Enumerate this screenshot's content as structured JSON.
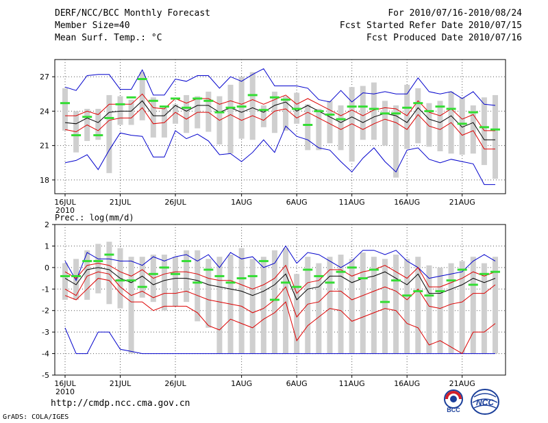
{
  "header": {
    "left": [
      "DERF/NCC/BCC Monthly Forecast",
      "Member Size=40",
      "Mean Surf. Temp.: °C"
    ],
    "right": [
      "For 2010/07/16-2010/08/24",
      "Fcst Started Refer Date 2010/07/15",
      "Fcst Produced Date 2010/07/16"
    ]
  },
  "footer": {
    "url": "http://cmdp.ncc.cma.gov.cn",
    "grads": "GrADS: COLA/IGES",
    "logo1": "BCC",
    "logo2": "NCC"
  },
  "colors": {
    "box": "#cfcfcf",
    "median": "#33dd33",
    "mean": "#000000",
    "pm_sd": "#dd0000",
    "extreme": "#0000cc"
  },
  "chart_data": [
    {
      "type": "box-ensemble",
      "title": "Mean Surf. Temp.: °C",
      "xlabel": "",
      "ylabel": "",
      "ylim": [
        16.8,
        28.5
      ],
      "yticks": [
        18,
        21,
        24,
        27
      ],
      "grid": true,
      "xtick_labels": [
        "16JUL",
        "21JUL",
        "26JUL",
        "1AUG",
        "6AUG",
        "11AUG",
        "16AUG",
        "21AUG"
      ],
      "xtick_days": [
        1,
        6,
        11,
        17,
        22,
        27,
        32,
        37
      ],
      "year_label": "2010",
      "days": 40,
      "mean": [
        23.0,
        22.9,
        23.4,
        23.0,
        23.9,
        24.0,
        24.0,
        24.9,
        23.6,
        23.6,
        24.5,
        24.0,
        24.5,
        24.5,
        23.9,
        24.3,
        23.9,
        24.3,
        23.9,
        24.5,
        24.8,
        24.0,
        24.5,
        24.0,
        23.5,
        23.0,
        23.5,
        23.0,
        23.5,
        23.8,
        23.6,
        23.0,
        24.3,
        23.3,
        23.0,
        23.6,
        22.6,
        23.0,
        21.5,
        21.5
      ],
      "upper_sd": [
        23.6,
        23.6,
        24.0,
        23.7,
        24.6,
        24.6,
        24.6,
        25.5,
        24.3,
        24.2,
        25.1,
        24.7,
        25.1,
        25.1,
        24.6,
        24.9,
        24.6,
        25.0,
        24.6,
        25.0,
        25.4,
        24.6,
        25.1,
        24.6,
        24.1,
        23.6,
        24.1,
        23.6,
        24.1,
        24.3,
        24.2,
        23.6,
        24.9,
        23.9,
        23.6,
        24.2,
        23.3,
        23.7,
        22.3,
        22.3
      ],
      "lower_sd": [
        22.4,
        22.2,
        22.8,
        22.3,
        23.2,
        23.4,
        23.4,
        24.3,
        22.9,
        23.0,
        23.9,
        23.3,
        23.9,
        23.9,
        23.2,
        23.7,
        23.2,
        23.6,
        23.2,
        24.0,
        24.2,
        23.4,
        23.9,
        23.4,
        22.9,
        22.4,
        22.9,
        22.4,
        22.9,
        23.3,
        23.0,
        22.4,
        23.7,
        22.7,
        22.4,
        23.0,
        21.9,
        22.3,
        20.7,
        20.7
      ],
      "max": [
        26.1,
        25.8,
        27.1,
        27.2,
        27.2,
        25.9,
        25.9,
        27.6,
        25.4,
        25.4,
        26.8,
        26.6,
        27.1,
        27.1,
        26.0,
        27.0,
        26.6,
        27.2,
        27.7,
        26.2,
        26.2,
        26.2,
        26.0,
        25.0,
        24.8,
        25.8,
        24.8,
        25.6,
        25.5,
        25.7,
        25.5,
        25.5,
        26.9,
        25.7,
        25.5,
        25.7,
        25.1,
        25.7,
        24.6,
        24.5
      ],
      "min": [
        19.5,
        19.7,
        20.2,
        18.9,
        20.6,
        22.1,
        21.9,
        21.8,
        20.0,
        20.0,
        22.3,
        21.6,
        22.0,
        21.4,
        20.2,
        20.3,
        19.6,
        20.4,
        21.5,
        20.4,
        22.7,
        21.8,
        21.5,
        20.8,
        20.6,
        19.6,
        18.7,
        19.9,
        20.8,
        19.6,
        18.7,
        20.6,
        20.8,
        19.8,
        19.5,
        19.8,
        19.6,
        19.4,
        17.6,
        17.6
      ],
      "box_top": [
        26.0,
        24.0,
        24.2,
        24.2,
        25.4,
        25.3,
        25.0,
        27.4,
        25.2,
        24.3,
        24.6,
        25.4,
        25.3,
        25.7,
        25.3,
        26.3,
        27.0,
        27.4,
        24.5,
        25.7,
        25.3,
        25.6,
        24.6,
        24.2,
        24.9,
        24.5,
        26.1,
        26.2,
        26.5,
        24.9,
        24.5,
        26.3,
        26.0,
        24.7,
        24.9,
        25.7,
        25.2,
        24.5,
        25.2,
        25.4
      ],
      "box_bottom": [
        22.3,
        20.4,
        21.4,
        21.5,
        18.6,
        22.8,
        22.8,
        23.2,
        21.7,
        21.7,
        22.9,
        22.1,
        22.5,
        22.2,
        21.1,
        20.3,
        21.6,
        21.5,
        22.6,
        22.1,
        22.3,
        22.9,
        20.6,
        20.6,
        21.2,
        20.6,
        19.6,
        21.5,
        21.5,
        21.0,
        18.2,
        20.7,
        21.2,
        20.9,
        20.5,
        20.3,
        20.2,
        20.3,
        19.3,
        18.1
      ],
      "median": [
        24.7,
        21.9,
        23.5,
        21.9,
        23.4,
        24.6,
        25.2,
        26.8,
        24.9,
        24.4,
        25.1,
        24.3,
        25.1,
        24.9,
        23.9,
        24.3,
        24.4,
        25.4,
        24.1,
        25.2,
        25.0,
        24.2,
        22.8,
        24.0,
        23.7,
        23.3,
        24.4,
        24.4,
        24.2,
        23.8,
        23.8,
        24.3,
        24.7,
        24.0,
        24.4,
        24.2,
        22.9,
        23.9,
        22.6,
        22.4
      ]
    },
    {
      "type": "box-ensemble",
      "title": "Prec.: log(mm/d)",
      "xlabel": "",
      "ylabel": "",
      "ylim": [
        -5,
        2
      ],
      "yticks": [
        -5,
        -4,
        -3,
        -2,
        -1,
        0,
        1,
        2
      ],
      "grid": true,
      "xtick_labels": [
        "16JUL",
        "21JUL",
        "26JUL",
        "1AUG",
        "6AUG",
        "11AUG",
        "16AUG",
        "21AUG"
      ],
      "xtick_days": [
        1,
        6,
        11,
        17,
        22,
        27,
        32,
        37
      ],
      "year_label": "2010",
      "days": 40,
      "mean": [
        -0.5,
        -0.8,
        -0.1,
        0.0,
        -0.1,
        -0.5,
        -0.7,
        -0.4,
        -0.8,
        -0.6,
        -0.5,
        -0.5,
        -0.6,
        -0.8,
        -0.9,
        -1.0,
        -1.1,
        -1.3,
        -1.1,
        -0.8,
        -0.3,
        -1.5,
        -1.0,
        -0.9,
        -0.4,
        -0.4,
        -0.7,
        -0.5,
        -0.4,
        -0.2,
        -0.5,
        -0.8,
        -0.3,
        -1.2,
        -1.2,
        -1.0,
        -0.8,
        -0.5,
        -0.7,
        -0.5
      ],
      "upper_sd": [
        -0.2,
        -0.5,
        0.1,
        0.2,
        0.1,
        -0.2,
        -0.4,
        -0.1,
        -0.5,
        -0.3,
        -0.2,
        -0.2,
        -0.3,
        -0.5,
        -0.6,
        -0.6,
        -0.8,
        -1.0,
        -0.8,
        -0.5,
        0.1,
        -1.2,
        -0.7,
        -0.6,
        -0.1,
        -0.1,
        -0.4,
        -0.2,
        -0.1,
        0.1,
        -0.2,
        -0.5,
        0.0,
        -0.9,
        -0.9,
        -0.7,
        -0.5,
        -0.2,
        -0.4,
        -0.2
      ],
      "lower_sd": [
        -1.0,
        -1.3,
        -0.4,
        -0.2,
        -0.3,
        -0.9,
        -1.3,
        -1.1,
        -1.4,
        -1.2,
        -1.2,
        -1.1,
        -1.3,
        -1.5,
        -1.6,
        -1.7,
        -1.8,
        -2.1,
        -1.9,
        -1.5,
        -0.9,
        -2.3,
        -1.7,
        -1.6,
        -1.1,
        -1.1,
        -1.5,
        -1.3,
        -1.1,
        -0.9,
        -1.1,
        -1.5,
        -1.0,
        -1.8,
        -1.9,
        -1.7,
        -1.6,
        -1.2,
        -1.2,
        -0.8
      ],
      "lower_2sd": [
        -1.3,
        -1.5,
        -1.0,
        -0.5,
        -0.6,
        -1.2,
        -1.6,
        -1.6,
        -2.0,
        -1.8,
        -1.8,
        -1.8,
        -2.1,
        -2.7,
        -2.9,
        -2.4,
        -2.6,
        -2.8,
        -2.4,
        -2.1,
        -1.6,
        -3.4,
        -2.7,
        -2.3,
        -1.9,
        -2.0,
        -2.5,
        -2.3,
        -2.1,
        -1.9,
        -2.0,
        -2.6,
        -2.8,
        -3.6,
        -3.4,
        -3.7,
        -4.0,
        -3.0,
        -3.0,
        -2.6
      ],
      "max": [
        0.3,
        -0.6,
        0.7,
        0.4,
        0.4,
        0.3,
        0.3,
        0.1,
        0.5,
        0.3,
        0.5,
        0.6,
        0.3,
        0.6,
        0.0,
        0.7,
        0.4,
        0.5,
        0.0,
        0.2,
        1.0,
        0.2,
        0.7,
        0.6,
        0.3,
        0.0,
        0.3,
        0.8,
        0.8,
        0.6,
        0.8,
        0.3,
        0.0,
        -0.5,
        -0.4,
        -0.3,
        -0.2,
        0.3,
        0.6,
        0.3
      ],
      "min": [
        -2.8,
        -4.0,
        -4.0,
        -3.0,
        -3.0,
        -3.8,
        -3.9,
        -4.0,
        -4.0,
        -4.0,
        -4.0,
        -4.0,
        -4.0,
        -4.0,
        -4.0,
        -4.0,
        -4.0,
        -4.0,
        -4.0,
        -4.0,
        -4.0,
        -4.0,
        -4.0,
        -4.0,
        -4.0,
        -4.0,
        -4.0,
        -4.0,
        -4.0,
        -4.0,
        -4.0,
        -4.0,
        -4.0,
        -4.0,
        -4.0,
        -4.0,
        -4.0,
        -4.0,
        -4.0,
        -4.0
      ],
      "box_top": [
        0.2,
        0.4,
        0.8,
        1.1,
        1.2,
        0.9,
        0.5,
        0.5,
        0.6,
        0.6,
        0.5,
        0.8,
        0.8,
        0.4,
        0.5,
        0.6,
        0.9,
        0.4,
        0.5,
        0.8,
        0.9,
        -0.3,
        0.5,
        0.2,
        0.5,
        0.6,
        0.4,
        0.7,
        0.5,
        0.4,
        0.6,
        0.4,
        0.5,
        0.1,
        0.0,
        0.2,
        0.3,
        0.5,
        0.2,
        0.5
      ],
      "box_bottom": [
        -1.5,
        -1.5,
        -1.5,
        -1.2,
        -1.7,
        -1.9,
        -4.0,
        -1.4,
        -1.6,
        -2.0,
        -1.8,
        -1.6,
        -2.5,
        -2.8,
        -4.0,
        -4.0,
        -4.0,
        -4.0,
        -4.0,
        -4.0,
        -4.0,
        -4.0,
        -4.0,
        -4.0,
        -4.0,
        -4.0,
        -4.0,
        -4.0,
        -4.0,
        -4.0,
        -4.0,
        -4.0,
        -4.0,
        -4.0,
        -4.0,
        -4.0,
        -4.0,
        -4.0,
        -4.0,
        -4.0
      ],
      "median": [
        -0.4,
        -0.4,
        0.3,
        0.3,
        0.6,
        -0.6,
        -0.6,
        -0.9,
        -0.3,
        0.0,
        -0.3,
        0.3,
        -0.7,
        -0.1,
        -0.4,
        -0.7,
        -0.5,
        -0.4,
        0.3,
        -1.5,
        -0.7,
        -0.9,
        -0.1,
        -0.4,
        -0.7,
        -0.2,
        0.0,
        -0.5,
        -0.1,
        -1.6,
        -0.6,
        -1.3,
        -1.1,
        -1.3,
        -1.1,
        -0.6,
        -0.1,
        -0.8,
        -0.3,
        -0.2
      ]
    }
  ]
}
